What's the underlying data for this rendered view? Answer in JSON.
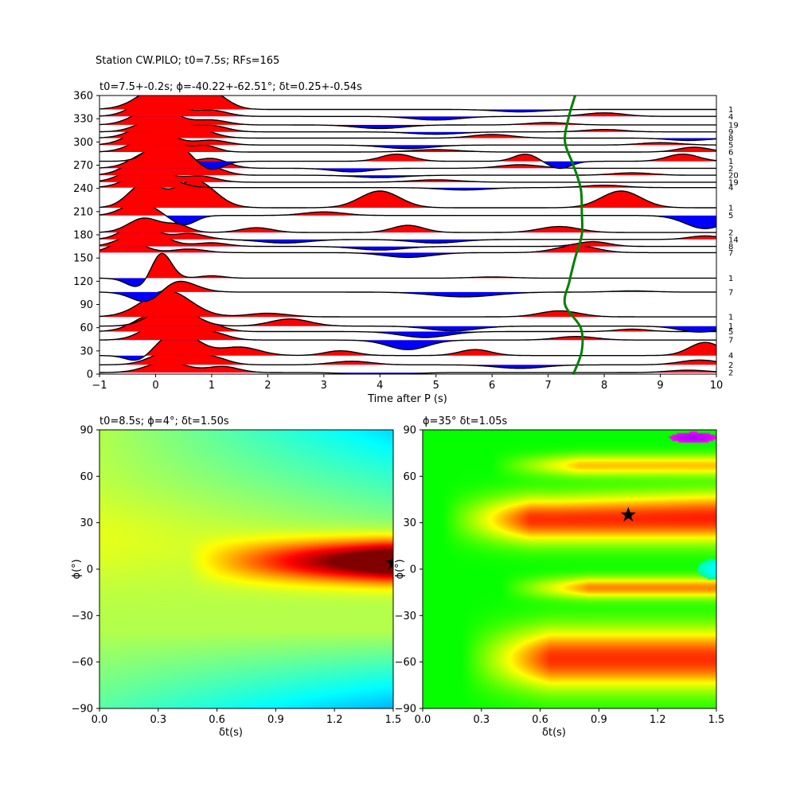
{
  "suptitle": "Station CW.PILO; t0=7.5s; RFs=165",
  "chart_data": [
    {
      "type": "line",
      "panel": "receiver-function-traces",
      "title": "t0=7.5+-0.2s; ϕ=-40.22+-62.51°; δt=0.25+-0.54s",
      "xlabel": "Time after P (s)",
      "ylabel": "",
      "xlim": [
        -1,
        10
      ],
      "ylim": [
        0,
        360
      ],
      "x_ticks": [
        "−1",
        "0",
        "1",
        "2",
        "3",
        "4",
        "5",
        "6",
        "7",
        "8",
        "9",
        "10"
      ],
      "y_ticks": [
        "0",
        "30",
        "60",
        "90",
        "120",
        "150",
        "180",
        "210",
        "240",
        "270",
        "300",
        "330",
        "360"
      ],
      "positive_fill_color": "#ff0000",
      "negative_fill_color": "#0000ff",
      "delay_curve_color": "#008000",
      "delay_curve": {
        "y": [
          0,
          30,
          60,
          90,
          120,
          150,
          180,
          210,
          240,
          270,
          300,
          330,
          360
        ],
        "x": [
          7.45,
          7.6,
          7.58,
          7.3,
          7.38,
          7.48,
          7.6,
          7.6,
          7.58,
          7.45,
          7.3,
          7.36,
          7.48
        ]
      },
      "traces": [
        {
          "baz": 2,
          "count": "2",
          "peaks": [
            [
              0.2,
              0.9,
              0.5
            ],
            [
              1.2,
              0.5,
              0.4
            ],
            [
              4.0,
              -0.3,
              0.6
            ],
            [
              9.5,
              0.2,
              0.5
            ]
          ]
        },
        {
          "baz": 12,
          "count": "2",
          "peaks": [
            [
              0.3,
              1.2,
              0.5
            ],
            [
              1.0,
              0.6,
              0.4
            ],
            [
              3.5,
              0.3,
              0.5
            ],
            [
              6.5,
              -0.3,
              0.6
            ],
            [
              9.7,
              0.4,
              0.5
            ]
          ]
        },
        {
          "baz": 24,
          "count": "4",
          "peaks": [
            [
              -0.3,
              -0.6,
              0.3
            ],
            [
              0.4,
              2.0,
              0.5
            ],
            [
              1.5,
              0.7,
              0.5
            ],
            [
              3.3,
              0.4,
              0.4
            ],
            [
              5.7,
              0.5,
              0.4
            ],
            [
              9.8,
              1.1,
              0.4
            ]
          ]
        },
        {
          "baz": 44,
          "count": "7",
          "peaks": [
            [
              0.2,
              1.8,
              0.5
            ],
            [
              1.0,
              0.6,
              0.4
            ],
            [
              4.5,
              -0.8,
              0.5
            ],
            [
              7.5,
              0.3,
              0.5
            ]
          ]
        },
        {
          "baz": 55,
          "count": "5",
          "peaks": [
            [
              0.0,
              1.5,
              0.5
            ],
            [
              0.9,
              0.7,
              0.4
            ],
            [
              4.8,
              -0.5,
              0.6
            ],
            [
              8.5,
              0.2,
              0.4
            ]
          ]
        },
        {
          "baz": 62,
          "count": "1",
          "peaks": [
            [
              0.3,
              1.8,
              0.5
            ],
            [
              2.4,
              0.6,
              0.5
            ],
            [
              5.3,
              -0.4,
              0.6
            ],
            [
              9.7,
              -0.5,
              0.5
            ]
          ]
        },
        {
          "baz": 74,
          "count": "1",
          "peaks": [
            [
              0.2,
              2.2,
              0.6
            ],
            [
              2.0,
              0.3,
              0.5
            ],
            [
              7.2,
              0.5,
              0.5
            ]
          ]
        },
        {
          "baz": 106,
          "count": "7",
          "peaks": [
            [
              -0.1,
              -1.3,
              0.4
            ],
            [
              0.3,
              1.2,
              0.5
            ],
            [
              5.5,
              -0.4,
              0.8
            ],
            [
              8.5,
              0.1,
              0.5
            ]
          ]
        },
        {
          "baz": 124,
          "count": "1",
          "peaks": [
            [
              -0.3,
              -0.8,
              0.3
            ],
            [
              0.1,
              2.2,
              0.25
            ],
            [
              1.0,
              0.2,
              0.3
            ],
            [
              6.0,
              0.1,
              0.5
            ]
          ]
        },
        {
          "baz": 157,
          "count": "7",
          "peaks": [
            [
              -0.5,
              1.0,
              0.4
            ],
            [
              0.6,
              0.3,
              0.4
            ],
            [
              4.5,
              -0.4,
              0.6
            ],
            [
              7.5,
              0.6,
              0.5
            ]
          ]
        },
        {
          "baz": 165,
          "count": "8",
          "peaks": [
            [
              -0.2,
              1.4,
              0.5
            ],
            [
              1.0,
              0.3,
              0.4
            ],
            [
              4.0,
              -0.3,
              0.6
            ],
            [
              7.8,
              0.4,
              0.4
            ]
          ]
        },
        {
          "baz": 174,
          "count": "14",
          "peaks": [
            [
              -0.3,
              1.3,
              0.4
            ],
            [
              0.6,
              0.5,
              0.4
            ],
            [
              2.3,
              -0.3,
              0.6
            ],
            [
              5.0,
              -0.3,
              0.6
            ],
            [
              9.8,
              0.3,
              0.4
            ]
          ]
        },
        {
          "baz": 183,
          "count": "2",
          "peaks": [
            [
              -0.2,
              1.2,
              0.4
            ],
            [
              0.4,
              0.6,
              0.3
            ],
            [
              1.8,
              0.4,
              0.4
            ],
            [
              4.5,
              0.6,
              0.4
            ],
            [
              7.2,
              0.5,
              0.5
            ]
          ]
        },
        {
          "baz": 205,
          "count": "5",
          "peaks": [
            [
              -0.3,
              1.1,
              0.4
            ],
            [
              0.5,
              -0.8,
              0.3
            ],
            [
              3.0,
              0.3,
              0.5
            ],
            [
              9.8,
              -1.1,
              0.5
            ]
          ]
        },
        {
          "baz": 215,
          "count": "1",
          "peaks": [
            [
              -0.2,
              2.0,
              0.4
            ],
            [
              0.7,
              2.3,
              0.5
            ],
            [
              4.0,
              1.4,
              0.5
            ],
            [
              8.3,
              1.4,
              0.5
            ]
          ]
        },
        {
          "baz": 241,
          "count": "4",
          "peaks": [
            [
              -0.1,
              1.5,
              0.5
            ],
            [
              5.5,
              -0.2,
              0.6
            ],
            [
              8.0,
              0.2,
              0.5
            ]
          ]
        },
        {
          "baz": 248,
          "count": "19",
          "peaks": [
            [
              -0.2,
              1.4,
              0.5
            ],
            [
              0.8,
              0.5,
              0.4
            ],
            [
              5.0,
              0.2,
              0.6
            ]
          ]
        },
        {
          "baz": 257,
          "count": "20",
          "peaks": [
            [
              -0.1,
              1.8,
              0.5
            ],
            [
              0.9,
              0.8,
              0.4
            ],
            [
              4.0,
              -0.2,
              0.6
            ],
            [
              8.5,
              0.2,
              0.5
            ]
          ]
        },
        {
          "baz": 266,
          "count": "2",
          "peaks": [
            [
              0.0,
              1.6,
              0.5
            ],
            [
              1.0,
              0.8,
              0.4
            ],
            [
              3.5,
              -0.3,
              0.5
            ],
            [
              6.5,
              0.3,
              0.5
            ]
          ]
        },
        {
          "baz": 275,
          "count": "1",
          "peaks": [
            [
              0.2,
              2.2,
              0.4
            ],
            [
              1.0,
              -0.7,
              0.3
            ],
            [
              4.3,
              0.6,
              0.4
            ],
            [
              6.6,
              0.6,
              0.3
            ],
            [
              7.2,
              -0.6,
              0.3
            ],
            [
              9.4,
              0.6,
              0.4
            ]
          ]
        },
        {
          "baz": 287,
          "count": "6",
          "peaks": [
            [
              0.0,
              1.5,
              0.5
            ],
            [
              0.9,
              0.5,
              0.3
            ],
            [
              5.0,
              0.2,
              0.6
            ],
            [
              9.6,
              0.4,
              0.4
            ]
          ]
        },
        {
          "baz": 296,
          "count": "5",
          "peaks": [
            [
              -0.1,
              1.5,
              0.5
            ],
            [
              1.0,
              0.4,
              0.4
            ],
            [
              4.5,
              -0.3,
              0.6
            ],
            [
              9.0,
              0.2,
              0.5
            ]
          ]
        },
        {
          "baz": 305,
          "count": "8",
          "peaks": [
            [
              0.0,
              1.4,
              0.5
            ],
            [
              0.8,
              0.6,
              0.4
            ],
            [
              6.0,
              0.3,
              0.5
            ],
            [
              9.5,
              -0.2,
              0.5
            ]
          ]
        },
        {
          "baz": 313,
          "count": "9",
          "peaks": [
            [
              0.1,
              1.3,
              0.5
            ],
            [
              1.0,
              0.5,
              0.4
            ],
            [
              5.0,
              -0.2,
              0.6
            ],
            [
              8.0,
              0.2,
              0.5
            ]
          ]
        },
        {
          "baz": 322,
          "count": "19",
          "peaks": [
            [
              0.0,
              1.5,
              0.5
            ],
            [
              1.0,
              0.4,
              0.4
            ],
            [
              4.0,
              -0.3,
              0.6
            ],
            [
              7.0,
              0.2,
              0.5
            ]
          ]
        },
        {
          "baz": 333,
          "count": "4",
          "peaks": [
            [
              0.0,
              1.7,
              0.5
            ],
            [
              1.0,
              0.5,
              0.4
            ],
            [
              5.0,
              -0.3,
              0.6
            ],
            [
              8.0,
              0.3,
              0.5
            ]
          ]
        },
        {
          "baz": 342,
          "count": "1",
          "peaks": [
            [
              0.2,
              2.3,
              0.6
            ],
            [
              1.0,
              1.2,
              0.4
            ],
            [
              6.5,
              -0.2,
              0.6
            ]
          ]
        }
      ]
    },
    {
      "type": "heatmap",
      "panel": "left-grid-search",
      "title": "t0=8.5s; ϕ=4°; δt=1.50s",
      "xlabel": "δt(s)",
      "ylabel": "ϕ(°)",
      "xlim": [
        0,
        1.5
      ],
      "ylim": [
        -90,
        90
      ],
      "x_ticks": [
        "0.0",
        "0.3",
        "0.6",
        "0.9",
        "1.2",
        "1.5"
      ],
      "y_ticks": [
        "−90",
        "−60",
        "−30",
        "0",
        "30",
        "60",
        "90"
      ],
      "colormap": "jet",
      "best": {
        "dt": 1.5,
        "phi": 4
      }
    },
    {
      "type": "heatmap",
      "panel": "right-grid-search",
      "title": "ϕ=35° δt=1.05s",
      "xlabel": "δt(s)",
      "ylabel": "ϕ(°)",
      "xlim": [
        0,
        1.5
      ],
      "ylim": [
        -90,
        90
      ],
      "x_ticks": [
        "0.0",
        "0.3",
        "0.6",
        "0.9",
        "1.2",
        "1.5"
      ],
      "y_ticks": [
        "−90",
        "−60",
        "−30",
        "0",
        "30",
        "60",
        "90"
      ],
      "colormap": "hsv",
      "best": {
        "dt": 1.05,
        "phi": 35
      }
    }
  ]
}
